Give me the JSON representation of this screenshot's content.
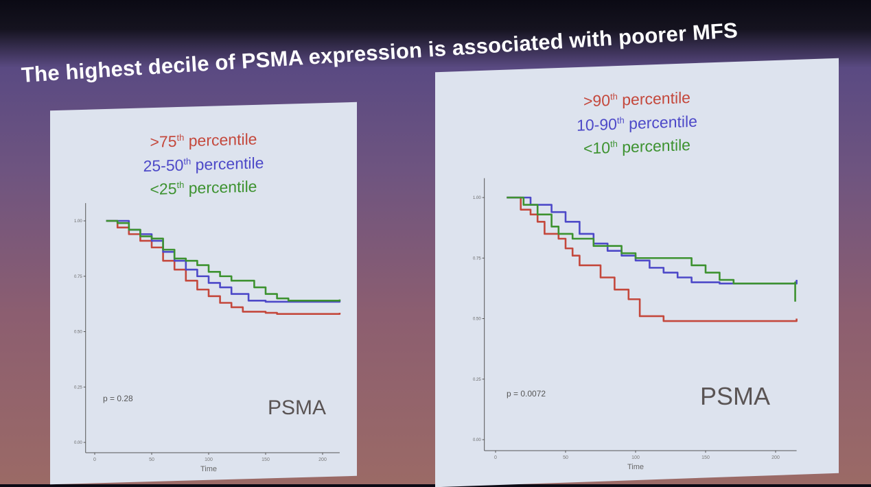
{
  "slide": {
    "title": "The highest decile of PSMA expression is associated with poorer MFS"
  },
  "colors": {
    "red": "#c4483c",
    "blue": "#4d49c8",
    "green": "#3d9230"
  },
  "chart_data": [
    {
      "type": "line",
      "subtype": "kaplan-meier step",
      "legend_entries": [
        {
          "pre": ">75",
          "sup": "th",
          "post": " percentile",
          "color": "#c4483c"
        },
        {
          "pre": "25-50",
          "sup": "th",
          "post": " percentile",
          "color": "#4d49c8"
        },
        {
          "pre": "<25",
          "sup": "th",
          "post": " percentile",
          "color": "#3d9230"
        }
      ],
      "legend_placement": "top-center",
      "xlabel": "Time",
      "ylabel": "",
      "xlim": [
        -5,
        215
      ],
      "ylim": [
        -0.05,
        1.05
      ],
      "xticks": [
        "0",
        "50",
        "100",
        "150",
        "200"
      ],
      "yticks": [
        "0.00",
        "0.25",
        "0.50",
        "0.75",
        "1.00"
      ],
      "annotation_p": "p = 0.28",
      "annotation_marker": "PSMA",
      "grid": false,
      "series": [
        {
          "color": "#c4483c",
          "x": [
            10,
            20,
            30,
            40,
            50,
            60,
            70,
            80,
            90,
            100,
            110,
            120,
            130,
            150,
            160,
            215
          ],
          "y": [
            1,
            0.97,
            0.94,
            0.91,
            0.88,
            0.82,
            0.78,
            0.73,
            0.69,
            0.66,
            0.63,
            0.61,
            0.59,
            0.585,
            0.58,
            0.585
          ]
        },
        {
          "color": "#4d49c8",
          "x": [
            10,
            20,
            30,
            40,
            50,
            60,
            70,
            80,
            90,
            100,
            110,
            120,
            135,
            150,
            215
          ],
          "y": [
            1,
            1,
            0.96,
            0.94,
            0.91,
            0.86,
            0.82,
            0.78,
            0.75,
            0.72,
            0.7,
            0.67,
            0.64,
            0.635,
            0.64
          ]
        },
        {
          "color": "#3d9230",
          "x": [
            10,
            20,
            30,
            40,
            50,
            60,
            70,
            80,
            90,
            100,
            110,
            120,
            130,
            140,
            150,
            160,
            170,
            215
          ],
          "y": [
            1,
            0.99,
            0.96,
            0.93,
            0.92,
            0.87,
            0.83,
            0.82,
            0.8,
            0.77,
            0.75,
            0.73,
            0.73,
            0.7,
            0.67,
            0.65,
            0.64,
            0.645
          ]
        }
      ]
    },
    {
      "type": "line",
      "subtype": "kaplan-meier step",
      "legend_entries": [
        {
          "pre": ">90",
          "sup": "th",
          "post": " percentile",
          "color": "#c4483c"
        },
        {
          "pre": "10-90",
          "sup": "th",
          "post": " percentile",
          "color": "#4d49c8"
        },
        {
          "pre": "<10",
          "sup": "th",
          "post": " percentile",
          "color": "#3d9230"
        }
      ],
      "legend_placement": "top-center",
      "xlabel": "Time",
      "ylabel": "",
      "xlim": [
        -5,
        215
      ],
      "ylim": [
        -0.05,
        1.05
      ],
      "xticks": [
        "0",
        "50",
        "100",
        "150",
        "200"
      ],
      "yticks": [
        "0.00",
        "0.25",
        "0.50",
        "0.75",
        "1.00"
      ],
      "annotation_p": "p = 0.0072",
      "annotation_marker": "PSMA",
      "grid": false,
      "series": [
        {
          "color": "#c4483c",
          "x": [
            8,
            15,
            18,
            25,
            30,
            35,
            45,
            50,
            55,
            60,
            70,
            75,
            85,
            95,
            103,
            120,
            215
          ],
          "y": [
            1,
            1,
            0.95,
            0.93,
            0.9,
            0.85,
            0.83,
            0.79,
            0.76,
            0.72,
            0.72,
            0.67,
            0.62,
            0.58,
            0.51,
            0.49,
            0.5
          ]
        },
        {
          "color": "#4d49c8",
          "x": [
            8,
            15,
            25,
            40,
            50,
            60,
            70,
            80,
            90,
            100,
            110,
            120,
            130,
            140,
            160,
            215
          ],
          "y": [
            1,
            1,
            0.97,
            0.94,
            0.9,
            0.85,
            0.81,
            0.78,
            0.76,
            0.74,
            0.71,
            0.69,
            0.67,
            0.65,
            0.645,
            0.66
          ]
        },
        {
          "color": "#3d9230",
          "x": [
            8,
            20,
            30,
            40,
            45,
            55,
            70,
            85,
            90,
            100,
            135,
            140,
            150,
            160,
            170,
            214,
            214
          ],
          "y": [
            1,
            0.97,
            0.93,
            0.88,
            0.85,
            0.83,
            0.8,
            0.8,
            0.77,
            0.75,
            0.75,
            0.72,
            0.69,
            0.66,
            0.645,
            0.65,
            0.57
          ]
        }
      ]
    }
  ]
}
